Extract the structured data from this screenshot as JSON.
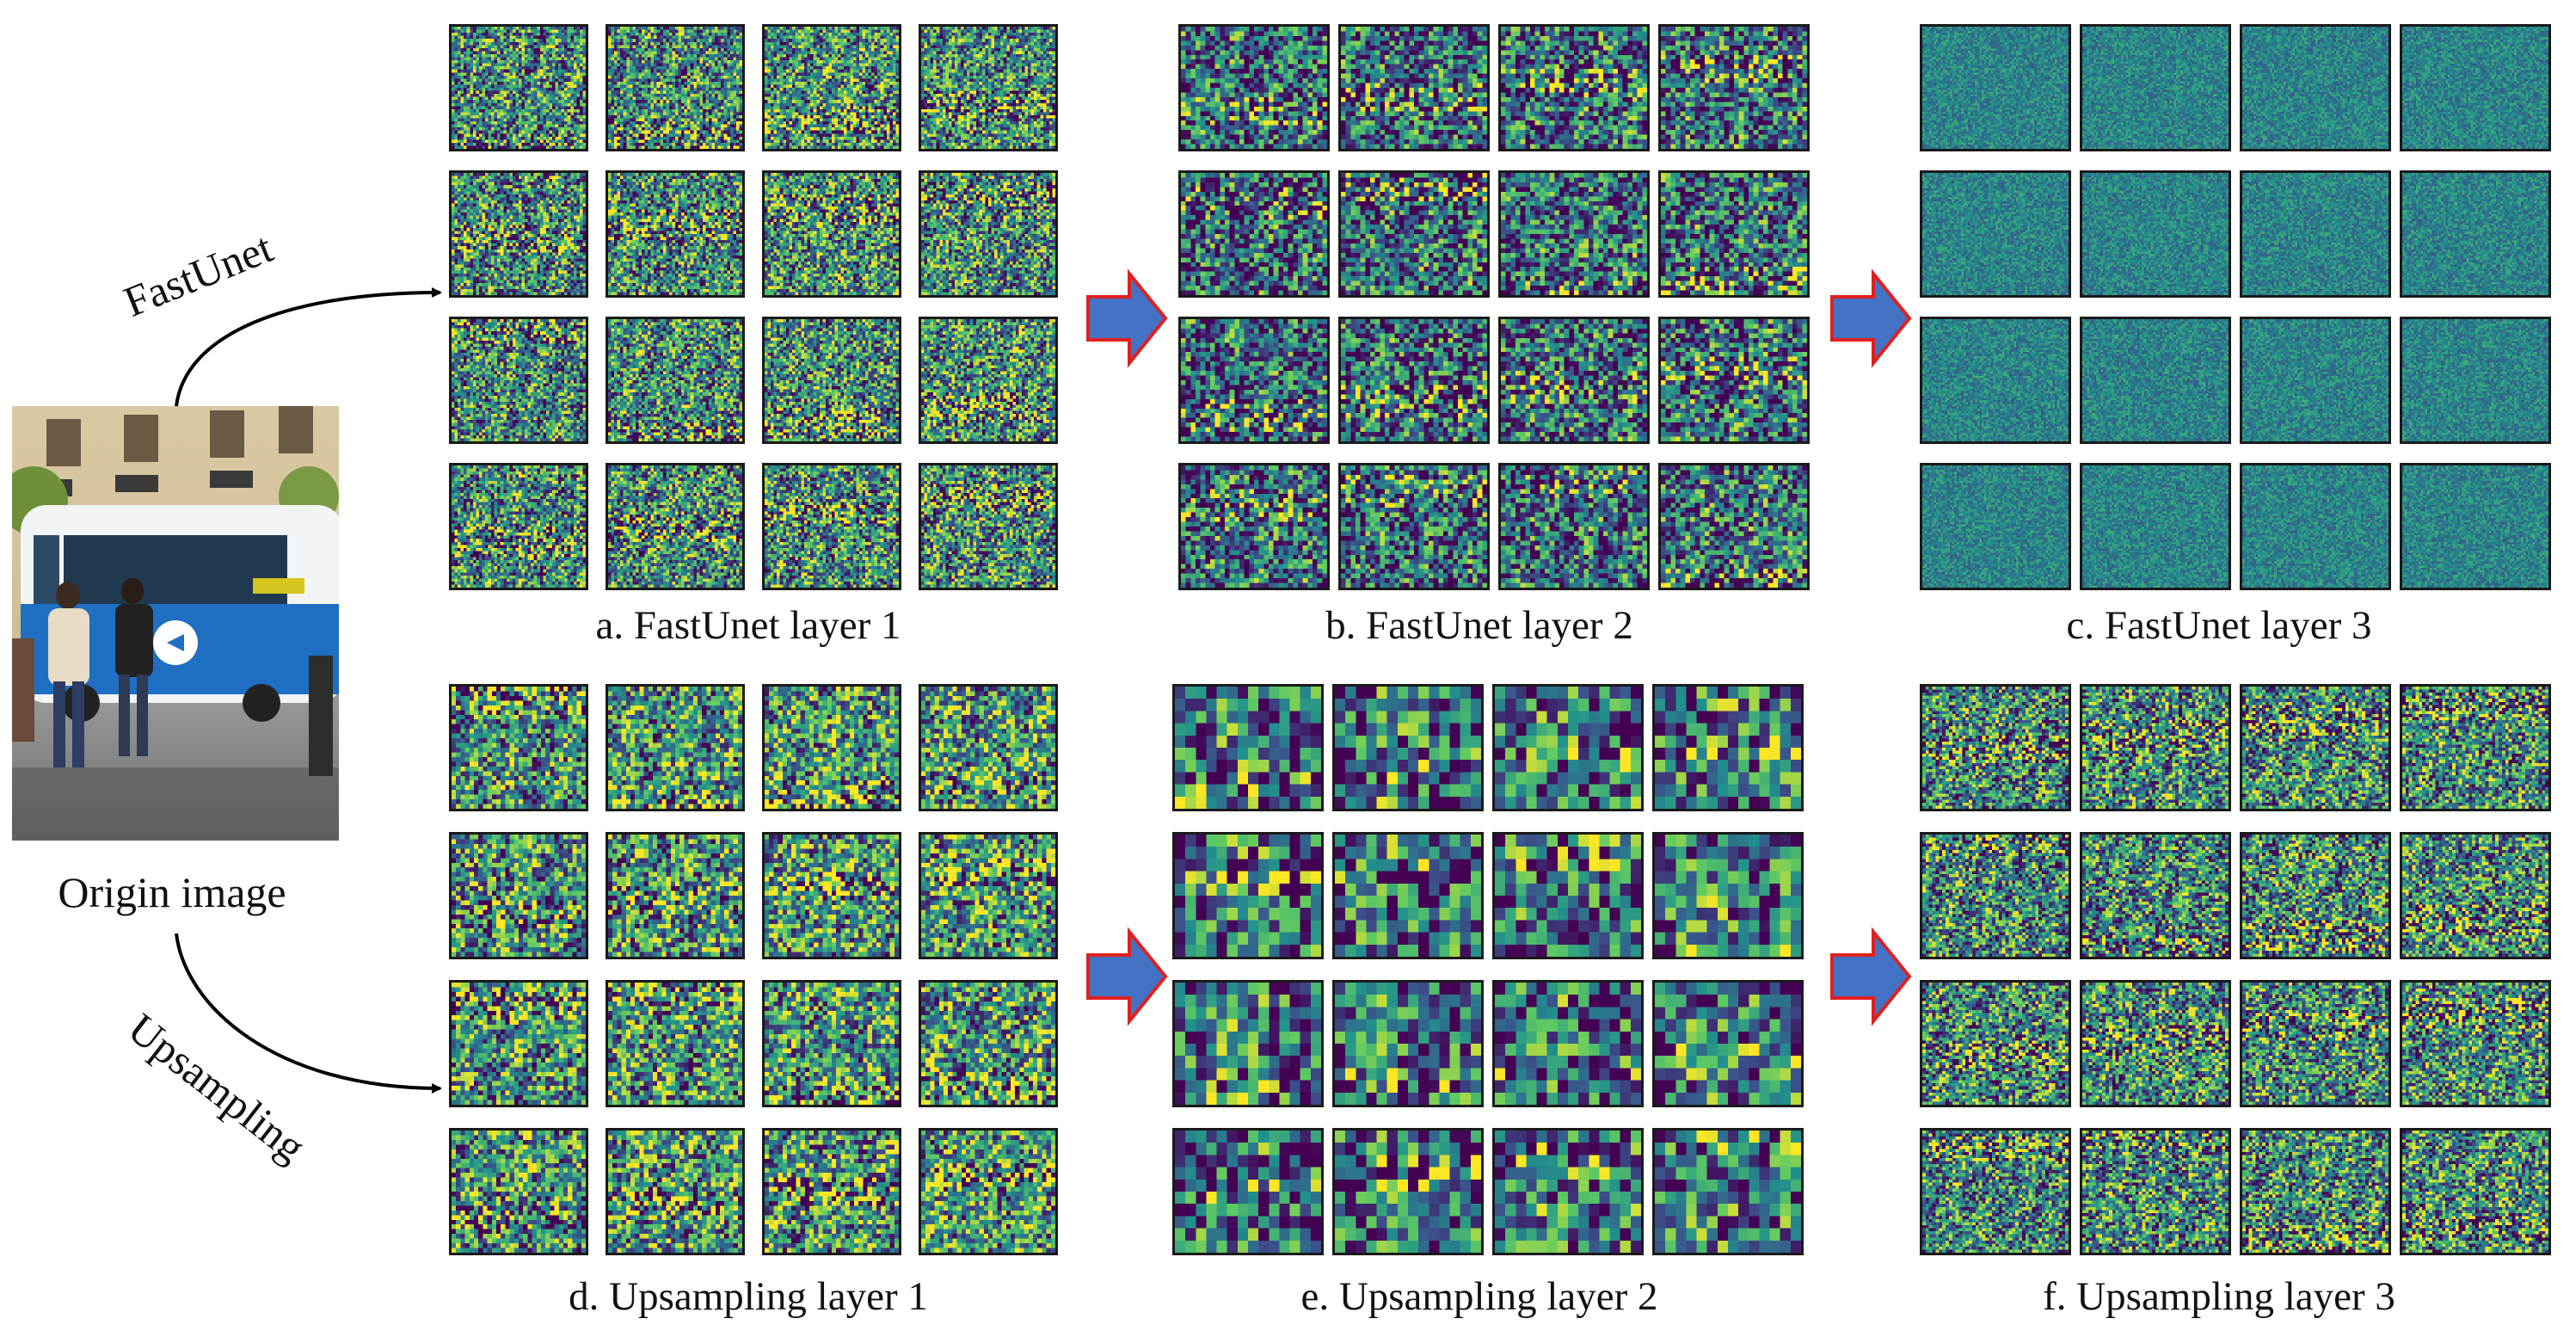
{
  "origin": {
    "caption": "Origin image",
    "photo_icon": "street-bus-photo"
  },
  "branches": {
    "top_label": "FastUnet",
    "bottom_label": "Upsampling"
  },
  "panels": [
    {
      "id": "a",
      "caption": "a. FastUnet layer 1",
      "grid": 4,
      "pattern": "fine"
    },
    {
      "id": "b",
      "caption": "b. FastUnet layer 2",
      "grid": 4,
      "pattern": "medium"
    },
    {
      "id": "c",
      "caption": "c. FastUnet layer 3",
      "grid": 4,
      "pattern": "noise"
    },
    {
      "id": "d",
      "caption": "d. Upsampling layer 1",
      "grid": 4,
      "pattern": "medium"
    },
    {
      "id": "e",
      "caption": "e. Upsampling layer 2",
      "grid": 4,
      "pattern": "coarse"
    },
    {
      "id": "f",
      "caption": "f. Upsampling layer 3",
      "grid": 4,
      "pattern": "fine"
    }
  ],
  "colors": {
    "arrow_fill": "#4472c4",
    "arrow_stroke": "#e02020",
    "colormap": "viridis"
  }
}
